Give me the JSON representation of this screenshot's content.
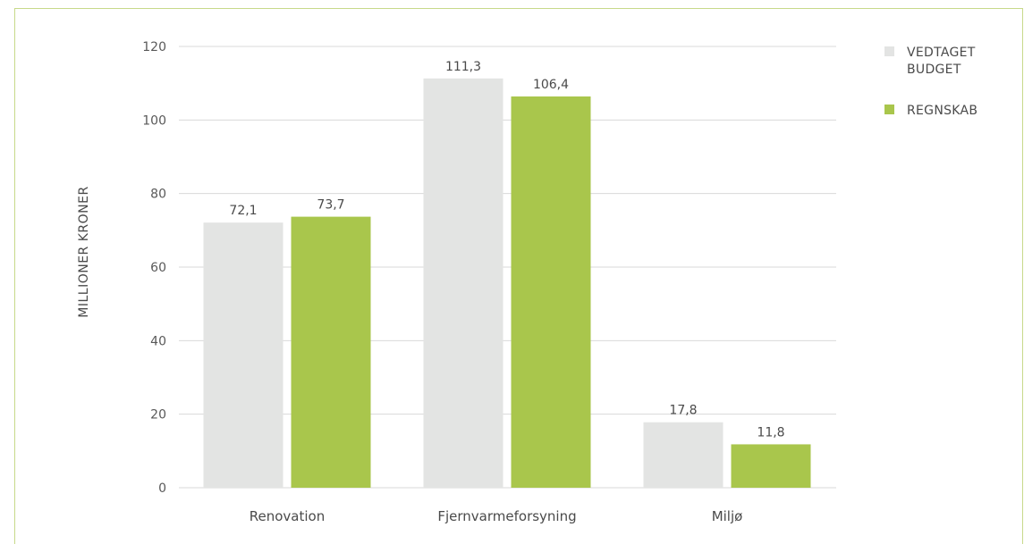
{
  "chart_data": {
    "type": "bar",
    "title": "",
    "xlabel": "",
    "ylabel": "MILLIONER KRONER",
    "ylim": [
      0,
      120
    ],
    "yticks": [
      0,
      20,
      40,
      60,
      80,
      100,
      120
    ],
    "ytick_labels": [
      "0",
      "20",
      "40",
      "60",
      "80",
      "100",
      "120"
    ],
    "grid": true,
    "legend_position": "top-right",
    "categories": [
      "Renovation",
      "Fjernvarmeforsyning",
      "Miljø"
    ],
    "series": [
      {
        "name": "VEDTAGET BUDGET",
        "legend_lines": [
          "VEDTAGET",
          "BUDGET"
        ],
        "color": "#e3e4e3",
        "values": [
          72.1,
          111.3,
          17.8
        ],
        "value_labels": [
          "72,1",
          "111,3",
          "17,8"
        ]
      },
      {
        "name": "REGNSKAB",
        "legend_lines": [
          "REGNSKAB"
        ],
        "color": "#a9c64c",
        "values": [
          73.7,
          106.4,
          11.8
        ],
        "value_labels": [
          "73,7",
          "106,4",
          "11,8"
        ]
      }
    ]
  },
  "colors": {
    "frame_border": "#c7d98a",
    "gridline": "#d9d9d9"
  }
}
